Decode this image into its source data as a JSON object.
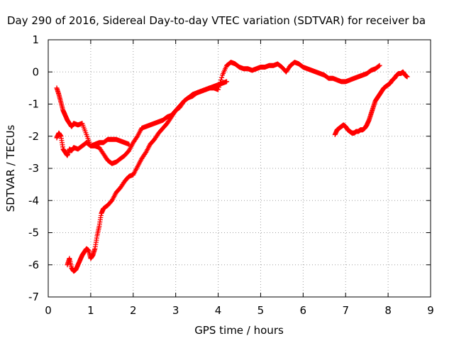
{
  "chart_data": {
    "type": "scatter",
    "title": "Day 290 of 2016, Sidereal Day-to-day VTEC variation (SDTVAR) for receiver ba",
    "xlabel": "GPS time / hours",
    "ylabel": "SDTVAR / TECUs",
    "xlim": [
      0,
      9
    ],
    "ylim": [
      -7,
      1
    ],
    "x_ticks": [
      0,
      1,
      2,
      3,
      4,
      5,
      6,
      7,
      8,
      9
    ],
    "y_ticks": [
      1,
      0,
      -1,
      -2,
      -3,
      -4,
      -5,
      -6,
      -7
    ],
    "x_tick_labels": [
      "0",
      "1",
      "2",
      "3",
      "4",
      "5",
      "6",
      "7",
      "8",
      "9"
    ],
    "y_tick_labels": [
      "1",
      "0",
      "-1",
      "-2",
      "-3",
      "-4",
      "-5",
      "-6",
      "-7"
    ],
    "grid": true,
    "marker": "+",
    "color": "#ff0000",
    "series": [
      {
        "x": [
          0.2,
          0.25,
          0.3,
          0.35,
          0.4,
          0.45,
          0.5,
          0.55,
          0.6,
          0.7,
          0.8,
          0.9,
          1.0,
          1.1,
          1.2,
          1.3,
          1.4,
          1.5,
          1.6,
          1.7,
          1.8,
          1.9
        ],
        "y": [
          -2.05,
          -1.9,
          -2.0,
          -2.4,
          -2.5,
          -2.6,
          -2.4,
          -2.45,
          -2.35,
          -2.4,
          -2.3,
          -2.2,
          -2.3,
          -2.25,
          -2.2,
          -2.2,
          -2.1,
          -2.1,
          -2.1,
          -2.15,
          -2.2,
          -2.25
        ]
      },
      {
        "x": [
          0.2,
          0.25,
          0.3,
          0.35,
          0.4,
          0.45,
          0.5,
          0.55,
          0.6,
          0.7,
          0.8,
          0.9,
          1.0,
          1.1,
          1.2,
          1.3,
          1.4,
          1.5,
          1.6,
          1.7,
          1.8,
          1.9,
          2.0,
          2.1,
          2.2,
          2.3,
          2.4,
          2.5,
          2.6,
          2.7,
          2.8,
          2.9,
          3.0,
          3.1,
          3.2,
          3.3,
          3.4,
          3.5,
          3.6,
          3.7,
          3.8,
          3.9,
          4.0,
          4.1,
          4.2,
          4.3,
          4.4,
          4.5,
          4.6,
          4.7,
          4.8,
          4.9,
          5.0,
          5.1,
          5.2,
          5.3,
          5.4,
          5.5,
          5.6,
          5.7,
          5.8,
          5.9,
          6.0,
          6.1,
          6.2,
          6.3,
          6.4,
          6.5,
          6.6,
          6.7,
          6.8,
          6.9,
          7.0,
          7.1,
          7.2,
          7.3,
          7.4,
          7.5,
          7.6,
          7.7,
          7.8
        ],
        "y": [
          -0.5,
          -0.7,
          -0.95,
          -1.2,
          -1.35,
          -1.5,
          -1.6,
          -1.7,
          -1.6,
          -1.65,
          -1.6,
          -1.95,
          -2.3,
          -2.3,
          -2.35,
          -2.55,
          -2.75,
          -2.85,
          -2.8,
          -2.7,
          -2.6,
          -2.45,
          -2.2,
          -2.0,
          -1.75,
          -1.7,
          -1.65,
          -1.6,
          -1.55,
          -1.5,
          -1.4,
          -1.35,
          -1.2,
          -1.05,
          -0.9,
          -0.8,
          -0.75,
          -0.65,
          -0.6,
          -0.55,
          -0.5,
          -0.5,
          -0.55,
          -0.1,
          0.2,
          0.3,
          0.25,
          0.15,
          0.1,
          0.1,
          0.05,
          0.1,
          0.15,
          0.15,
          0.2,
          0.2,
          0.25,
          0.15,
          0.0,
          0.2,
          0.3,
          0.25,
          0.15,
          0.1,
          0.05,
          0.0,
          -0.05,
          -0.1,
          -0.2,
          -0.2,
          -0.25,
          -0.3,
          -0.3,
          -0.25,
          -0.2,
          -0.15,
          -0.1,
          -0.05,
          0.05,
          0.1,
          0.2
        ]
      },
      {
        "x": [
          0.45,
          0.5,
          0.55,
          0.6,
          0.65,
          0.7,
          0.75,
          0.8,
          0.85,
          0.9,
          0.95,
          1.0,
          1.05,
          1.1,
          1.15,
          1.2,
          1.25,
          1.3,
          1.4,
          1.5,
          1.6,
          1.7,
          1.8,
          1.9,
          2.0,
          2.1,
          2.2,
          2.3,
          2.4,
          2.5,
          2.6,
          2.7,
          2.8,
          2.9,
          3.0,
          3.1,
          3.2,
          3.3,
          3.4,
          3.5,
          3.6,
          3.7,
          3.8,
          3.9,
          4.0,
          4.1,
          4.2
        ],
        "y": [
          -6.0,
          -5.8,
          -6.1,
          -6.2,
          -6.15,
          -6.0,
          -5.85,
          -5.7,
          -5.6,
          -5.5,
          -5.55,
          -5.8,
          -5.7,
          -5.5,
          -5.1,
          -4.8,
          -4.4,
          -4.25,
          -4.15,
          -4.0,
          -3.75,
          -3.6,
          -3.4,
          -3.25,
          -3.2,
          -2.95,
          -2.7,
          -2.5,
          -2.25,
          -2.1,
          -1.9,
          -1.75,
          -1.6,
          -1.4,
          -1.2,
          -1.1,
          -0.9,
          -0.8,
          -0.7,
          -0.65,
          -0.6,
          -0.55,
          -0.5,
          -0.45,
          -0.4,
          -0.35,
          -0.3
        ]
      },
      {
        "x": [
          6.75,
          6.8,
          6.85,
          6.9,
          6.95,
          7.0,
          7.05,
          7.1,
          7.15,
          7.2,
          7.25,
          7.3,
          7.35,
          7.4,
          7.45,
          7.5,
          7.55,
          7.6,
          7.65,
          7.7,
          7.75,
          7.8,
          7.85,
          7.9,
          7.95,
          8.0,
          8.05,
          8.1,
          8.15,
          8.2,
          8.25,
          8.3,
          8.35,
          8.4,
          8.45
        ],
        "y": [
          -1.95,
          -1.8,
          -1.75,
          -1.7,
          -1.65,
          -1.7,
          -1.8,
          -1.85,
          -1.9,
          -1.9,
          -1.85,
          -1.85,
          -1.8,
          -1.8,
          -1.75,
          -1.65,
          -1.5,
          -1.3,
          -1.1,
          -0.9,
          -0.8,
          -0.7,
          -0.6,
          -0.5,
          -0.45,
          -0.4,
          -0.35,
          -0.25,
          -0.2,
          -0.1,
          -0.05,
          -0.05,
          0.0,
          -0.1,
          -0.15
        ]
      }
    ]
  }
}
